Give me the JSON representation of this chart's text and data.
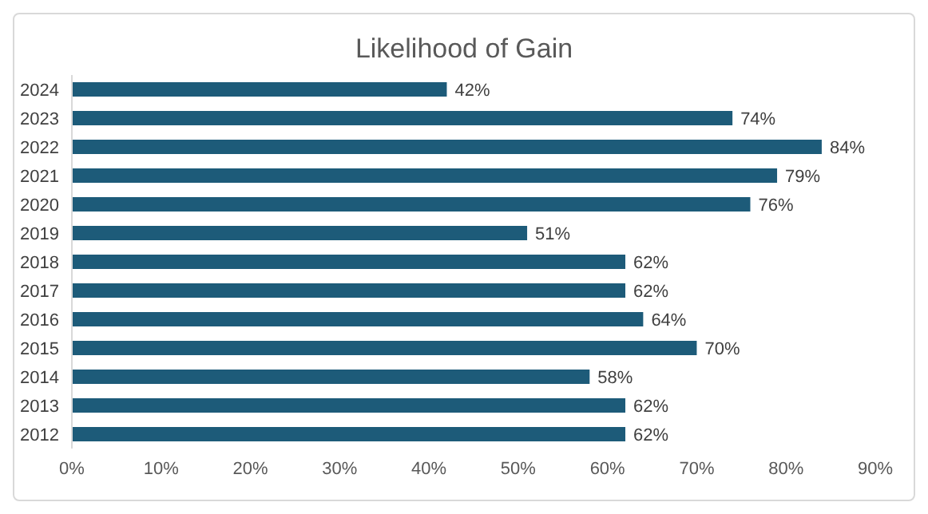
{
  "chart_data": {
    "type": "bar",
    "title": "Likelihood of Gain",
    "orientation": "horizontal",
    "categories": [
      "2024",
      "2023",
      "2022",
      "2021",
      "2020",
      "2019",
      "2018",
      "2017",
      "2016",
      "2015",
      "2014",
      "2013",
      "2012"
    ],
    "values": [
      42,
      74,
      84,
      79,
      76,
      51,
      62,
      62,
      64,
      70,
      58,
      62,
      62
    ],
    "value_labels": [
      "42%",
      "74%",
      "84%",
      "79%",
      "76%",
      "51%",
      "62%",
      "62%",
      "64%",
      "70%",
      "58%",
      "62%",
      "62%"
    ],
    "color": "#1d5b79",
    "xlim": [
      0,
      90
    ],
    "xticks": [
      {
        "value": 0,
        "label": "0%"
      },
      {
        "value": 10,
        "label": "10%"
      },
      {
        "value": 20,
        "label": "20%"
      },
      {
        "value": 30,
        "label": "30%"
      },
      {
        "value": 40,
        "label": "40%"
      },
      {
        "value": 50,
        "label": "50%"
      },
      {
        "value": 60,
        "label": "60%"
      },
      {
        "value": 70,
        "label": "70%"
      },
      {
        "value": 80,
        "label": "80%"
      },
      {
        "value": 90,
        "label": "90%"
      }
    ],
    "grid": false,
    "legend": false
  }
}
